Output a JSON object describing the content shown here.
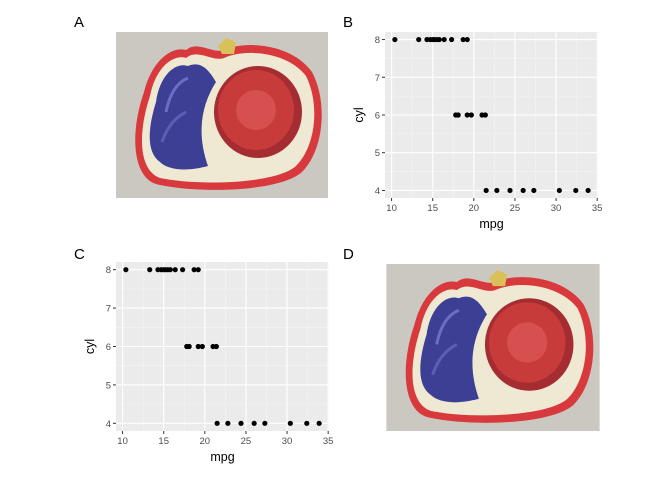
{
  "panels": {
    "a": {
      "label": "A"
    },
    "b": {
      "label": "B"
    },
    "c": {
      "label": "C"
    },
    "d": {
      "label": "D"
    }
  },
  "image_description_color": {
    "background": "#c9c6c0",
    "border_red": "#d8393c",
    "purple": "#3c3f93",
    "fig_flesh": "#c83b3b",
    "cream": "#efe8d2"
  },
  "chart_data": [
    {
      "panel": "B",
      "type": "scatter",
      "xlabel": "mpg",
      "ylabel": "cyl",
      "xlim": [
        9.2,
        35.1
      ],
      "ylim": [
        3.8,
        8.2
      ],
      "xticks": [
        10,
        15,
        20,
        25,
        30,
        35
      ],
      "yticks": [
        4,
        5,
        6,
        7,
        8
      ],
      "grid": true,
      "background": "#ebebeb",
      "point_color": "#000000",
      "points": [
        [
          10.4,
          8
        ],
        [
          13.3,
          8
        ],
        [
          14.3,
          8
        ],
        [
          14.7,
          8
        ],
        [
          15.0,
          8
        ],
        [
          15.2,
          8
        ],
        [
          15.5,
          8
        ],
        [
          15.8,
          8
        ],
        [
          16.4,
          8
        ],
        [
          17.3,
          8
        ],
        [
          18.7,
          8
        ],
        [
          19.2,
          8
        ],
        [
          17.8,
          6
        ],
        [
          18.1,
          6
        ],
        [
          19.2,
          6
        ],
        [
          19.7,
          6
        ],
        [
          21.0,
          6
        ],
        [
          21.4,
          6
        ],
        [
          21.5,
          4
        ],
        [
          22.8,
          4
        ],
        [
          24.4,
          4
        ],
        [
          26.0,
          4
        ],
        [
          27.3,
          4
        ],
        [
          30.4,
          4
        ],
        [
          32.4,
          4
        ],
        [
          33.9,
          4
        ]
      ]
    },
    {
      "panel": "C",
      "type": "scatter",
      "xlabel": "mpg",
      "ylabel": "cyl",
      "xlim": [
        9.2,
        35.1
      ],
      "ylim": [
        3.8,
        8.2
      ],
      "xticks": [
        10,
        15,
        20,
        25,
        30,
        35
      ],
      "yticks": [
        4,
        5,
        6,
        7,
        8
      ],
      "grid": true,
      "background": "#ebebeb",
      "point_color": "#000000",
      "points": [
        [
          10.4,
          8
        ],
        [
          13.3,
          8
        ],
        [
          14.3,
          8
        ],
        [
          14.7,
          8
        ],
        [
          15.0,
          8
        ],
        [
          15.2,
          8
        ],
        [
          15.5,
          8
        ],
        [
          15.8,
          8
        ],
        [
          16.4,
          8
        ],
        [
          17.3,
          8
        ],
        [
          18.7,
          8
        ],
        [
          19.2,
          8
        ],
        [
          17.8,
          6
        ],
        [
          18.1,
          6
        ],
        [
          19.2,
          6
        ],
        [
          19.7,
          6
        ],
        [
          21.0,
          6
        ],
        [
          21.4,
          6
        ],
        [
          21.5,
          4
        ],
        [
          22.8,
          4
        ],
        [
          24.4,
          4
        ],
        [
          26.0,
          4
        ],
        [
          27.3,
          4
        ],
        [
          30.4,
          4
        ],
        [
          32.4,
          4
        ],
        [
          33.9,
          4
        ]
      ]
    }
  ]
}
